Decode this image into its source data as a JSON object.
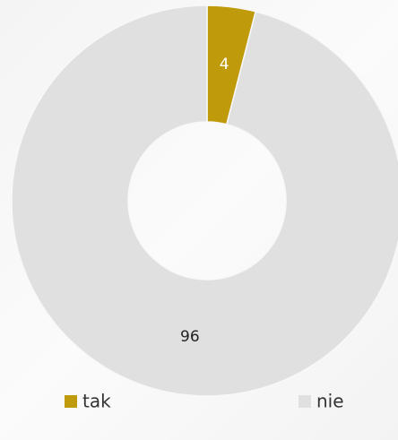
{
  "chart_data": {
    "type": "donut",
    "categories": [
      "tak",
      "nie"
    ],
    "values": [
      4,
      96
    ],
    "colors": [
      "#bf9a0a",
      "#e0e0e0"
    ],
    "label_colors": [
      "#ffffff",
      "#222222"
    ],
    "legend": "bottom"
  }
}
